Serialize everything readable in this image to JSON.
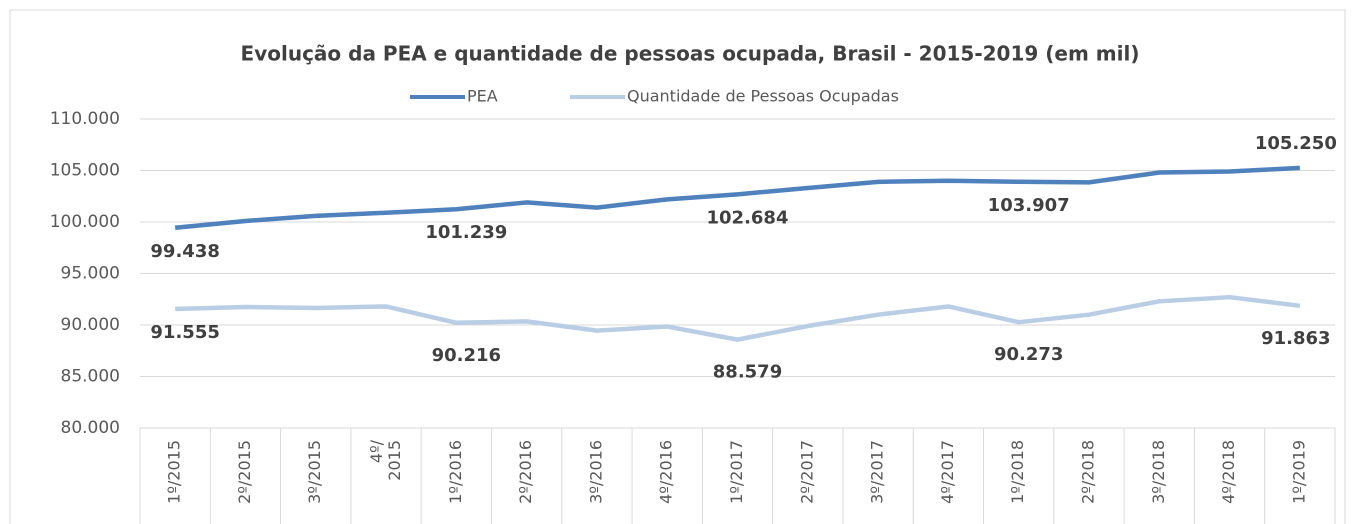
{
  "chart_data": {
    "type": "line",
    "title": "Evolução da PEA e quantidade de pessoas ocupada, Brasil - 2015-2019 (em mil)",
    "categories": [
      "1º/2015",
      "2º/2015",
      "3º/2015",
      "4º/ 2015",
      "1º/2016",
      "2º/2016",
      "3º/2016",
      "4º/2016",
      "1º/2017",
      "2º/2017",
      "3º/2017",
      "4º/2017",
      "1º/2018",
      "2º/2018",
      "3º/2018",
      "4º/2018",
      "1º/2019"
    ],
    "series": [
      {
        "name": "PEA",
        "color": "#4f81bd",
        "values": [
          99438,
          100100,
          100600,
          100900,
          101239,
          101900,
          101400,
          102200,
          102684,
          103300,
          103900,
          104000,
          103907,
          103850,
          104800,
          104900,
          105250
        ],
        "value_labels": [
          "99.438",
          null,
          null,
          null,
          "101.239",
          null,
          null,
          null,
          "102.684",
          null,
          null,
          null,
          "103.907",
          null,
          null,
          null,
          "105.250"
        ]
      },
      {
        "name": "Quantidade de Pessoas Ocupadas",
        "color": "#b9cde5",
        "values": [
          91555,
          91750,
          91650,
          91800,
          90216,
          90350,
          89450,
          89850,
          88579,
          89900,
          91000,
          91800,
          90273,
          91000,
          92300,
          92700,
          91863
        ],
        "value_labels": [
          "91.555",
          null,
          null,
          null,
          "90.216",
          null,
          null,
          null,
          "88.579",
          null,
          null,
          null,
          "90.273",
          null,
          null,
          null,
          "91.863"
        ]
      }
    ],
    "ylim": [
      80000,
      110000
    ],
    "yticks": [
      {
        "value": 80000,
        "label": "80.000"
      },
      {
        "value": 85000,
        "label": "85.000"
      },
      {
        "value": 90000,
        "label": "90.000"
      },
      {
        "value": 95000,
        "label": "95.000"
      },
      {
        "value": 100000,
        "label": "100.000"
      },
      {
        "value": 105000,
        "label": "105.000"
      },
      {
        "value": 110000,
        "label": "110.000"
      }
    ],
    "grid": true,
    "legend": "top"
  }
}
